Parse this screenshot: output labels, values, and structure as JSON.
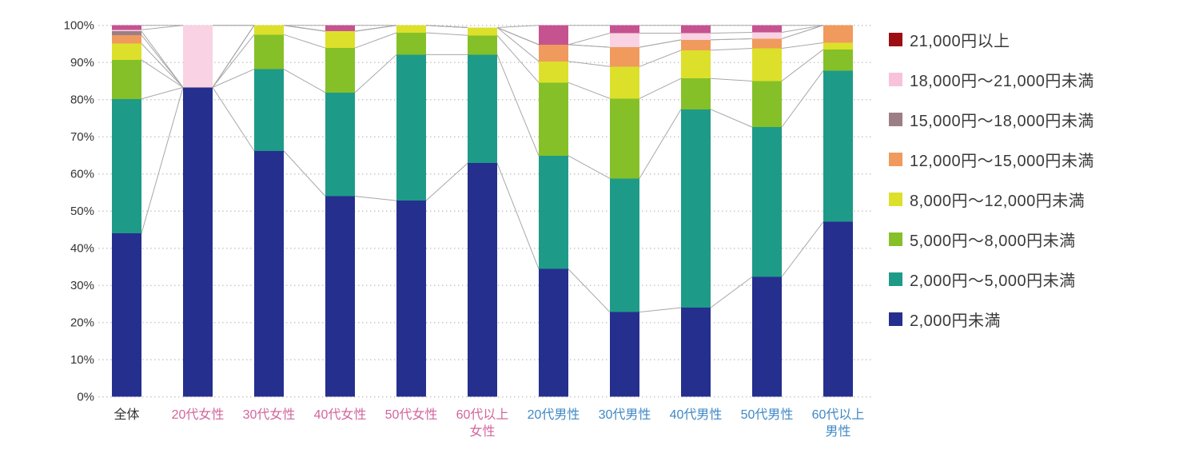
{
  "chart_data": {
    "type": "bar",
    "subtype": "stacked-100-percent",
    "title": "",
    "xlabel": "",
    "ylabel": "",
    "ylim": [
      0,
      100
    ],
    "grid": "dotted-horizontal-every-10pct",
    "legend_position": "right",
    "y_ticks": [
      "0%",
      "10%",
      "20%",
      "30%",
      "40%",
      "50%",
      "60%",
      "70%",
      "80%",
      "90%",
      "100%"
    ],
    "categories": [
      "全体",
      "20代女性",
      "30代女性",
      "40代女性",
      "50代女性",
      "60代以上\n女性",
      "20代男性",
      "30代男性",
      "40代男性",
      "50代男性",
      "60代以上\n男性"
    ],
    "category_label_colors": [
      "#333333",
      "#d2659d",
      "#d2659d",
      "#d2659d",
      "#d2659d",
      "#d2659d",
      "#3f88c5",
      "#3f88c5",
      "#3f88c5",
      "#3f88c5",
      "#3f88c5"
    ],
    "series": [
      {
        "name": "2,000円未満",
        "color": "#252f8e",
        "legend_color": "#252f8e",
        "values": [
          44.0,
          83.3,
          66.2,
          54.0,
          52.8,
          62.9,
          34.4,
          22.8,
          24.0,
          32.3,
          47.1
        ]
      },
      {
        "name": "2,000円〜5,000円未満",
        "color": "#1e9a88",
        "legend_color": "#1e9a88",
        "values": [
          36.2,
          0,
          22.0,
          27.9,
          39.3,
          29.2,
          30.5,
          36.0,
          53.4,
          40.3,
          40.7
        ]
      },
      {
        "name": "5,000円〜8,000円未満",
        "color": "#85c029",
        "legend_color": "#85c029",
        "values": [
          10.5,
          0,
          9.3,
          12.0,
          5.9,
          5.2,
          19.7,
          21.5,
          8.3,
          12.4,
          5.7
        ]
      },
      {
        "name": "8,000円〜12,000円未満",
        "color": "#dce02b",
        "legend_color": "#dce02b",
        "values": [
          4.4,
          0,
          2.5,
          4.5,
          2.0,
          2.1,
          5.7,
          8.6,
          7.6,
          8.8,
          1.8
        ]
      },
      {
        "name": "12,000円〜15,000円未満",
        "color": "#f09a5d",
        "legend_color": "#f09a5d",
        "values": [
          2.3,
          0,
          0,
          0,
          0,
          0,
          4.5,
          5.2,
          2.8,
          2.6,
          4.7
        ]
      },
      {
        "name": "15,000円〜18,000円未満",
        "color": "#9c7f86",
        "legend_color": "#9c7f86",
        "values": [
          1.0,
          0,
          0,
          0,
          0,
          0,
          0,
          0,
          0,
          0,
          0
        ]
      },
      {
        "name": "18,000円〜21,000円未満",
        "color": "#f9d2e3",
        "legend_color": "#f8c3da",
        "values": [
          0.4,
          16.7,
          0,
          0,
          0,
          0,
          0,
          3.8,
          1.8,
          1.7,
          0
        ]
      },
      {
        "name": "21,000円以上",
        "color": "#c5538f",
        "legend_color": "#9c0e12",
        "values": [
          1.2,
          0,
          0,
          1.6,
          0,
          0,
          5.2,
          2.1,
          2.1,
          1.9,
          0
        ]
      }
    ],
    "legend_order": "reverse-of-stack",
    "colors": {
      "grid": "#c9c9c9",
      "series_connector_line": "#a8a8a8",
      "axis_text": "#333333",
      "female_label": "#d2659d",
      "male_label": "#3f88c5"
    },
    "annotations": "thin gray series lines connect segment boundaries between adjacent bars"
  }
}
